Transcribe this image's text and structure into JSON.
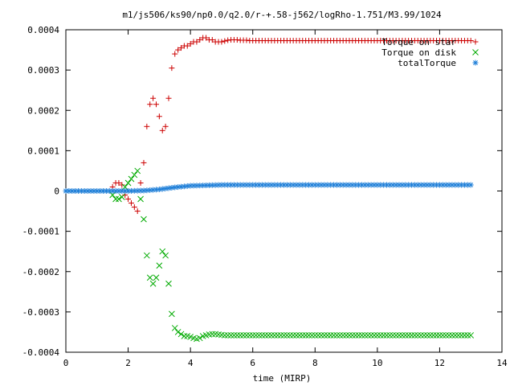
{
  "chart_data": {
    "type": "scatter",
    "title": "m1/js506/ks90/np0.0/q2.0/r-+.58-j562/logRho-1.751/M3.99/1024",
    "xlabel": "time (MIRP)",
    "ylabel": "",
    "xlim": [
      0,
      14
    ],
    "ylim": [
      -0.0004,
      0.0004
    ],
    "xticks": [
      0,
      2,
      4,
      6,
      8,
      10,
      12,
      14
    ],
    "xtick_labels": [
      "0",
      "2",
      "4",
      "6",
      "8",
      "10",
      "12",
      "14"
    ],
    "yticks": [
      -0.0004,
      -0.0003,
      -0.0002,
      -0.0001,
      0,
      0.0001,
      0.0002,
      0.0003,
      0.0004
    ],
    "ytick_labels": [
      "-0.0004",
      "-0.0003",
      "-0.0002",
      "-0.0001",
      "0",
      "0.0001",
      "0.0002",
      "0.0003",
      "0.0004"
    ],
    "grid": false,
    "legend_position": "top-right",
    "series": [
      {
        "name": "Torque on star",
        "marker": "plus",
        "color": "#cc0000",
        "x": [
          1.5,
          1.6,
          1.7,
          1.8,
          1.9,
          2.0,
          2.1,
          2.2,
          2.3,
          2.4,
          2.5,
          2.6,
          2.7,
          2.8,
          2.9,
          3.0,
          3.1,
          3.2,
          3.3,
          3.4,
          3.5,
          3.6,
          3.7,
          3.8,
          3.9,
          4.0,
          4.1,
          4.2,
          4.3,
          4.4,
          4.5,
          4.6,
          4.7,
          4.8,
          4.9,
          5.0,
          5.1,
          5.2,
          5.3,
          5.4,
          5.5,
          5.6,
          5.7,
          5.8,
          5.9,
          6.0
        ],
        "y": [
          1e-05,
          2e-05,
          2e-05,
          1.5e-05,
          -1e-05,
          -2e-05,
          -3e-05,
          -4e-05,
          -5e-05,
          2e-05,
          7e-05,
          0.00016,
          0.000215,
          0.00023,
          0.000215,
          0.000185,
          0.00015,
          0.00016,
          0.00023,
          0.000305,
          0.00034,
          0.00035,
          0.000355,
          0.00036,
          0.00036,
          0.000365,
          0.00037,
          0.00037,
          0.000375,
          0.00038,
          0.00038,
          0.000375,
          0.000375,
          0.00037,
          0.00037,
          0.00037,
          0.000372,
          0.000374,
          0.000375,
          0.000375,
          0.000375,
          0.000374,
          0.000374,
          0.000374,
          0.000373,
          0.000373
        ],
        "plateau_value": 0.000373,
        "plateau_x_end": 13.0
      },
      {
        "name": "Torque on disk",
        "marker": "cross",
        "color": "#00aa00",
        "x": [
          1.5,
          1.6,
          1.7,
          1.8,
          1.9,
          2.0,
          2.1,
          2.2,
          2.3,
          2.4,
          2.5,
          2.6,
          2.7,
          2.8,
          2.9,
          3.0,
          3.1,
          3.2,
          3.3,
          3.4,
          3.5,
          3.6,
          3.7,
          3.8,
          3.9,
          4.0,
          4.1,
          4.2,
          4.3,
          4.4,
          4.5,
          4.6,
          4.7,
          4.8,
          4.9,
          5.0,
          5.1,
          5.2,
          5.3,
          5.4,
          5.5,
          5.6,
          5.7,
          5.8,
          5.9,
          6.0
        ],
        "y": [
          -1e-05,
          -2e-05,
          -2e-05,
          -1.5e-05,
          1e-05,
          2e-05,
          3e-05,
          4e-05,
          5e-05,
          -2e-05,
          -7e-05,
          -0.00016,
          -0.000215,
          -0.00023,
          -0.000215,
          -0.000185,
          -0.00015,
          -0.00016,
          -0.00023,
          -0.000305,
          -0.00034,
          -0.00035,
          -0.000355,
          -0.00036,
          -0.00036,
          -0.000362,
          -0.000365,
          -0.000367,
          -0.000365,
          -0.00036,
          -0.000358,
          -0.000356,
          -0.000355,
          -0.000355,
          -0.000356,
          -0.000357,
          -0.000358,
          -0.000358,
          -0.000358,
          -0.000358,
          -0.000358,
          -0.000358,
          -0.000358,
          -0.000358,
          -0.000358,
          -0.000358
        ],
        "plateau_value": -0.000358,
        "plateau_x_end": 13.0
      },
      {
        "name": "totalTorque",
        "marker": "star",
        "color": "#1f7fd8",
        "x": [
          0.0,
          1.0,
          2.0,
          2.5,
          3.0,
          3.5,
          4.0,
          5.0,
          13.0
        ],
        "y": [
          0.0,
          0.0,
          0.0,
          1e-06,
          4e-06,
          9e-06,
          1.3e-05,
          1.5e-05,
          1.5e-05
        ],
        "sample_step": 0.1
      }
    ]
  }
}
